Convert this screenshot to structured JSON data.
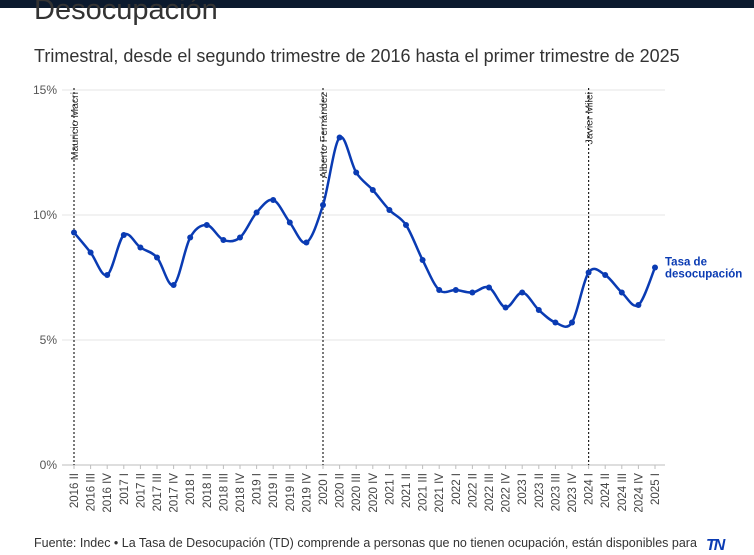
{
  "title": "Desocupación",
  "subtitle": "Trimestral, desde el segundo trimestre de 2016 hasta el primer trimestre de 2025",
  "source": "Fuente: Indec • La Tasa de Desocupación (TD) comprende a personas que no tienen ocupación, están disponibles para",
  "logo": "TN",
  "colors": {
    "line": "#0a3bb3",
    "grid": "#e6e6e6",
    "text": "#333333",
    "header_bar": "#0b1a2e"
  },
  "chart_data": {
    "type": "line",
    "categories": [
      "2016 II",
      "2016 III",
      "2016 IV",
      "2017 I",
      "2017 II",
      "2017 III",
      "2017 IV",
      "2018 I",
      "2018 II",
      "2018 III",
      "2018 IV",
      "2019 I",
      "2019 II",
      "2019 III",
      "2019 IV",
      "2020 I",
      "2020 II",
      "2020 III",
      "2020 IV",
      "2021 I",
      "2021 II",
      "2021 III",
      "2021 IV",
      "2022 I",
      "2022 II",
      "2022 III",
      "2022 IV",
      "2023 I",
      "2023 II",
      "2023 III",
      "2023 IV",
      "2024 I",
      "2024 II",
      "2024 III",
      "2024 IV",
      "2025 I"
    ],
    "series": [
      {
        "name": "Tasa de desocupación",
        "name_lines": [
          "Tasa de",
          "desocupación"
        ],
        "values": [
          9.3,
          8.5,
          7.6,
          9.2,
          8.7,
          8.3,
          7.2,
          9.1,
          9.6,
          9.0,
          9.1,
          10.1,
          10.6,
          9.7,
          8.9,
          10.4,
          13.1,
          11.7,
          11.0,
          10.2,
          9.6,
          8.2,
          7.0,
          7.0,
          6.9,
          7.1,
          6.3,
          6.9,
          6.2,
          5.7,
          5.7,
          7.7,
          7.6,
          6.9,
          6.4,
          7.9
        ]
      }
    ],
    "ylim": [
      0,
      15
    ],
    "yticks": [
      0,
      5,
      10,
      15
    ],
    "ytick_labels": [
      "0%",
      "5%",
      "10%",
      "15%"
    ],
    "xlabel": "",
    "ylabel": "",
    "grid": true,
    "annotations": [
      {
        "category": "2016 II",
        "label": "Mauricio Macri"
      },
      {
        "category": "2020 I",
        "label": "Alberto Fernández"
      },
      {
        "category": "2024 I",
        "label": "Javier Milei"
      }
    ]
  }
}
